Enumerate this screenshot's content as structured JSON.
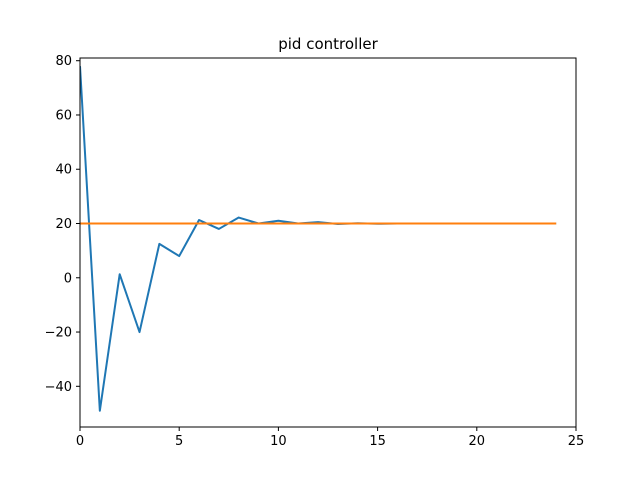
{
  "chart_data": {
    "type": "line",
    "title": "pid controller",
    "xlabel": "",
    "ylabel": "",
    "xlim": [
      0,
      25
    ],
    "ylim": [
      -55,
      81
    ],
    "x_ticks": [
      0,
      5,
      10,
      15,
      20,
      25
    ],
    "y_ticks": [
      -40,
      -20,
      0,
      20,
      40,
      60,
      80
    ],
    "grid": false,
    "series": [
      {
        "color": "#1f77b4",
        "x": [
          0,
          1,
          2,
          3,
          4,
          5,
          6,
          7,
          8,
          9,
          10,
          11,
          12,
          13,
          14,
          15,
          16,
          17,
          18,
          19,
          20,
          21,
          22,
          23,
          24
        ],
        "y": [
          78,
          -49,
          1.3,
          -20,
          12.5,
          8,
          21.3,
          18,
          22.2,
          20,
          21,
          20,
          20.5,
          19.8,
          20.1,
          19.9,
          20,
          20,
          20,
          20,
          20,
          20,
          20,
          20,
          20
        ]
      },
      {
        "color": "#ff7f0e",
        "x": [
          0,
          1,
          2,
          3,
          4,
          5,
          6,
          7,
          8,
          9,
          10,
          11,
          12,
          13,
          14,
          15,
          16,
          17,
          18,
          19,
          20,
          21,
          22,
          23,
          24
        ],
        "y": [
          20,
          20,
          20,
          20,
          20,
          20,
          20,
          20,
          20,
          20,
          20,
          20,
          20,
          20,
          20,
          20,
          20,
          20,
          20,
          20,
          20,
          20,
          20,
          20,
          20
        ]
      }
    ]
  }
}
